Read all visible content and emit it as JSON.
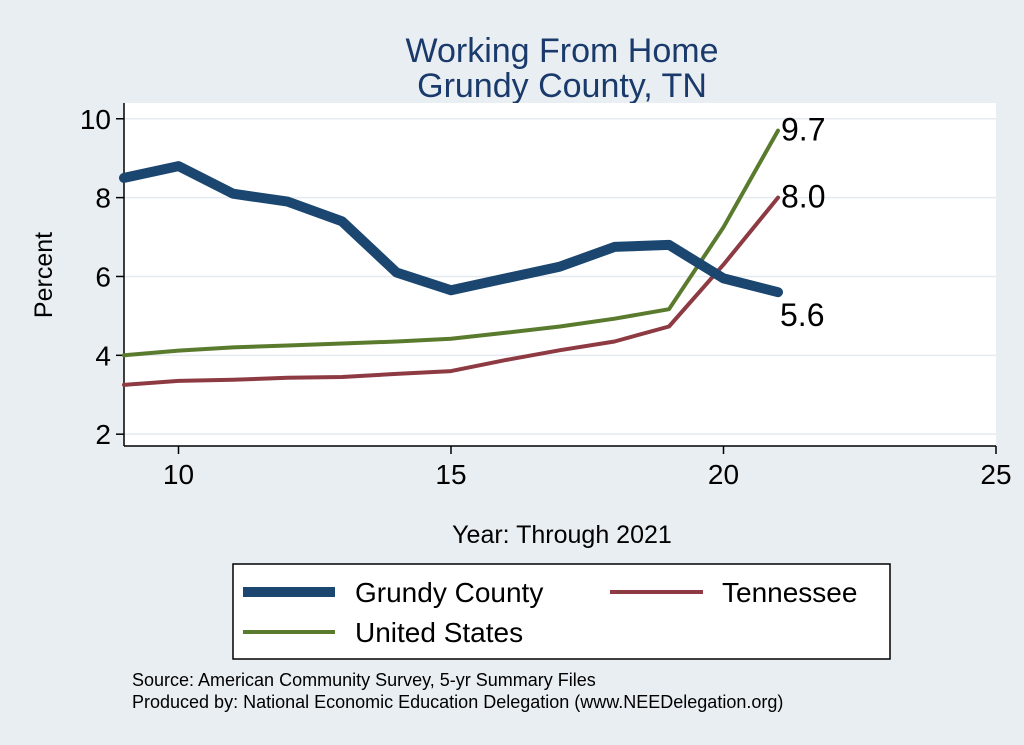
{
  "chart_data": {
    "type": "line",
    "title": [
      "Working From Home",
      "Grundy County, TN"
    ],
    "xlabel": "Year: Through 2021",
    "ylabel": "Percent",
    "xlim": [
      9,
      25
    ],
    "ylim": [
      1.7,
      10.4
    ],
    "xticks": [
      10,
      15,
      20,
      25
    ],
    "yticks": [
      2,
      4,
      6,
      8,
      10
    ],
    "grid": true,
    "colors": {
      "background": "#e9eef3",
      "plot": "#ffffff",
      "grid": "#e4eaf0",
      "title": "#1a3a6b"
    },
    "series": [
      {
        "name": "Grundy County",
        "color": "#1a4670",
        "width": 10,
        "x": [
          9,
          10,
          11,
          12,
          13,
          14,
          15,
          16,
          17,
          18,
          19,
          20,
          21
        ],
        "y": [
          8.5,
          8.8,
          8.1,
          7.9,
          7.4,
          6.1,
          5.65,
          5.95,
          6.25,
          6.75,
          6.8,
          5.95,
          5.6
        ],
        "end_label": "5.6"
      },
      {
        "name": "Tennessee",
        "color": "#8e3a43",
        "width": 4,
        "x": [
          9,
          10,
          11,
          12,
          13,
          14,
          15,
          16,
          17,
          18,
          19,
          20,
          21
        ],
        "y": [
          3.25,
          3.35,
          3.38,
          3.43,
          3.45,
          3.53,
          3.6,
          3.88,
          4.13,
          4.35,
          4.73,
          6.3,
          8.0
        ],
        "end_label": "8.0"
      },
      {
        "name": "United States",
        "color": "#5a7a2e",
        "width": 4,
        "x": [
          9,
          10,
          11,
          12,
          13,
          14,
          15,
          16,
          17,
          18,
          19,
          20,
          21
        ],
        "y": [
          4.0,
          4.12,
          4.2,
          4.25,
          4.3,
          4.35,
          4.42,
          4.57,
          4.73,
          4.93,
          5.17,
          7.25,
          9.7
        ],
        "end_label": "9.7"
      }
    ],
    "legend": {
      "position": "bottom",
      "entries": [
        "Grundy County",
        "Tennessee",
        "United States"
      ]
    },
    "notes": [
      "Source: American Community Survey, 5-yr Summary Files",
      "Produced by: National Economic Education Delegation (www.NEEDelegation.org)"
    ]
  }
}
